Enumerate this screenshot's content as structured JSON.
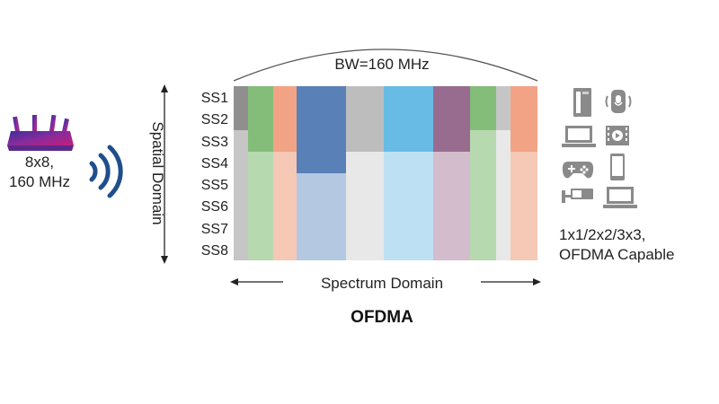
{
  "router": {
    "line1": "8x8,",
    "line2": "160 MHz"
  },
  "bandwidth_label": "BW=160 MHz",
  "spatial_axis_label": "Spatial Domain",
  "spectrum_axis_label": "Spectrum Domain",
  "diagram_title": "OFDMA",
  "spatial_streams": [
    "SS1",
    "SS2",
    "SS3",
    "SS4",
    "SS5",
    "SS6",
    "SS7",
    "SS8"
  ],
  "resource_units": [
    {
      "color": "#8f8f8f",
      "streams": [
        1,
        2
      ]
    },
    {
      "color": "#c6c6c6",
      "streams": [
        3,
        8
      ]
    },
    {
      "color": "#84bd7a",
      "streams": [
        1,
        3
      ]
    },
    {
      "color": "#b6d9b0",
      "streams": [
        4,
        8
      ]
    },
    {
      "color": "#f2a385",
      "streams": [
        1,
        3
      ]
    },
    {
      "color": "#f6c8b6",
      "streams": [
        4,
        8
      ]
    },
    {
      "color": "#5981b7",
      "streams": [
        1,
        4
      ]
    },
    {
      "color": "#b5c8e2",
      "streams": [
        5,
        8
      ]
    },
    {
      "color": "#bdbdbd",
      "streams": [
        1,
        3
      ]
    },
    {
      "color": "#e8e8e8",
      "streams": [
        4,
        8
      ]
    },
    {
      "color": "#67bbe5",
      "streams": [
        1,
        3
      ]
    },
    {
      "color": "#bde1f3",
      "streams": [
        4,
        8
      ]
    },
    {
      "color": "#986c8f",
      "streams": [
        1,
        3
      ]
    },
    {
      "color": "#d3bdcc",
      "streams": [
        4,
        8
      ]
    },
    {
      "color": "#84bd7a",
      "streams": [
        1,
        2
      ]
    },
    {
      "color": "#b6d9b0",
      "streams": [
        3,
        8
      ]
    },
    {
      "color": "#c6c6c6",
      "streams": [
        1,
        2
      ]
    },
    {
      "color": "#e8e8e8",
      "streams": [
        3,
        8
      ]
    },
    {
      "color": "#f2a385",
      "streams": [
        1,
        3
      ]
    },
    {
      "color": "#f6c8b6",
      "streams": [
        4,
        8
      ]
    }
  ],
  "clients": {
    "devices": [
      "desktop-tower-icon",
      "smart-speaker-icon",
      "laptop-icon",
      "video-player-icon",
      "game-controller-icon",
      "smartphone-icon",
      "security-camera-icon",
      "laptop-icon"
    ],
    "line1": "1x1/2x2/3x3,",
    "line2": "OFDMA Capable"
  },
  "colors": {
    "wave": "#1f4e8c",
    "axis": "#222222",
    "device": "#8a8a8a"
  }
}
